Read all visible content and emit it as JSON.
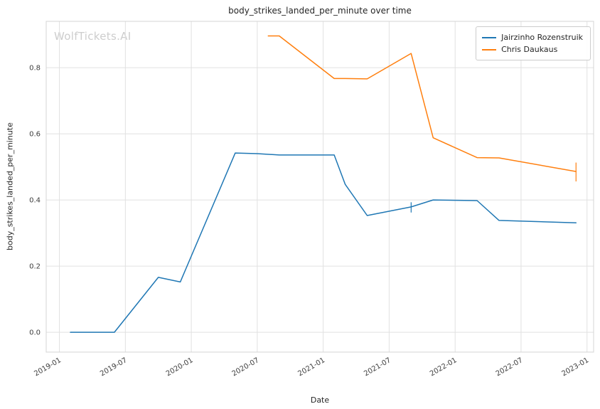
{
  "watermark": "WolfTickets.AI",
  "chart_data": {
    "type": "line",
    "title": "body_strikes_landed_per_minute over time",
    "xlabel": "Date",
    "ylabel": "body_strikes_landed_per_minute",
    "grid": true,
    "legend_position": "upper right",
    "x_ticks": [
      "2019-01",
      "2019-07",
      "2020-01",
      "2020-07",
      "2021-01",
      "2021-07",
      "2022-01",
      "2022-07",
      "2023-01"
    ],
    "y_ticks": [
      0.0,
      0.2,
      0.4,
      0.6,
      0.8
    ],
    "xlim_months": [
      -1.2,
      48.6
    ],
    "ylim": [
      -0.06,
      0.94
    ],
    "series": [
      {
        "name": "Jairzinho Rozenstruik",
        "color": "#1f77b4",
        "points": [
          [
            "2019-02",
            0.0
          ],
          [
            "2019-06",
            0.0
          ],
          [
            "2019-10",
            0.166
          ],
          [
            "2019-12",
            0.152
          ],
          [
            "2020-05",
            0.542
          ],
          [
            "2020-07",
            0.54
          ],
          [
            "2020-09",
            0.536
          ],
          [
            "2021-02",
            0.536
          ],
          [
            "2021-03",
            0.447
          ],
          [
            "2021-05",
            0.353
          ],
          [
            "2021-09",
            0.379
          ],
          [
            "2021-11",
            0.4
          ],
          [
            "2022-03",
            0.398
          ],
          [
            "2022-05",
            0.338
          ],
          [
            "2022-12",
            0.331
          ]
        ]
      },
      {
        "name": "Chris Daukaus",
        "color": "#ff7f0e",
        "points": [
          [
            "2020-08",
            0.896
          ],
          [
            "2020-09",
            0.896
          ],
          [
            "2021-02",
            0.767
          ],
          [
            "2021-03",
            0.767
          ],
          [
            "2021-05",
            0.766
          ],
          [
            "2021-09",
            0.843
          ],
          [
            "2021-11",
            0.588
          ],
          [
            "2022-03",
            0.528
          ],
          [
            "2022-05",
            0.527
          ],
          [
            "2022-12",
            0.486
          ]
        ]
      }
    ],
    "error_bars": [
      {
        "series": 0,
        "date": "2021-09",
        "low": 0.362,
        "high": 0.393
      },
      {
        "series": 1,
        "date": "2022-12",
        "low": 0.456,
        "high": 0.513
      }
    ],
    "colors": {
      "grid": "#e1e1e1",
      "axes_border": "#d4d4d4",
      "tick_label": "#3d3d3d",
      "text": "#262626",
      "watermark": "#cdcdcd",
      "legend_border": "#cccccc"
    }
  }
}
